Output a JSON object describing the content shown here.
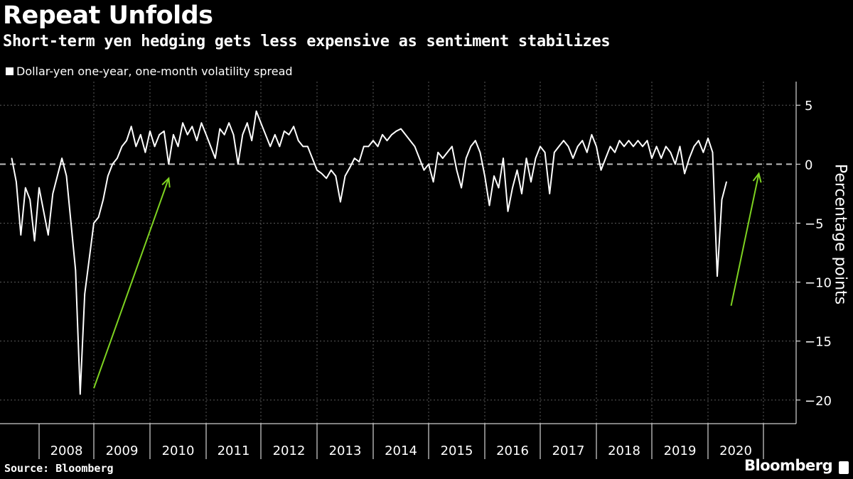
{
  "title": "Repeat Unfolds",
  "subtitle": "Short-term yen hedging gets less expensive as sentiment stabilizes",
  "legend_label": "Dollar-yen one-year, one-month volatility spread",
  "source": "Source: Bloomberg",
  "brand": "Bloomberg",
  "colors": {
    "background": "#000000",
    "series": "#ffffff",
    "arrow": "#7ed321",
    "grid": "#5a5a5a",
    "zero_line": "#bdbdbd"
  },
  "chart_data": {
    "type": "line",
    "title": "Repeat Unfolds",
    "ylabel": "Percentage points",
    "ylim": [
      -22,
      7
    ],
    "y_ticks": [
      5,
      0,
      -5,
      -10,
      -15,
      -20
    ],
    "x_ticks": [
      "2008",
      "2009",
      "2010",
      "2011",
      "2012",
      "2013",
      "2014",
      "2015",
      "2016",
      "2017",
      "2018",
      "2019",
      "2020"
    ],
    "grid": true,
    "legend_placement": "top-left",
    "reference_line": {
      "y": 0,
      "style": "dashed"
    },
    "series": [
      {
        "name": "Dollar-yen one-year, one-month volatility spread",
        "points": [
          [
            "2007-07",
            0.5
          ],
          [
            "2007-08",
            -1.5
          ],
          [
            "2007-09",
            -6.0
          ],
          [
            "2007-10",
            -2.0
          ],
          [
            "2007-11",
            -3.0
          ],
          [
            "2007-12",
            -6.5
          ],
          [
            "2008-01",
            -2.0
          ],
          [
            "2008-02",
            -4.0
          ],
          [
            "2008-03",
            -6.0
          ],
          [
            "2008-04",
            -2.5
          ],
          [
            "2008-05",
            -1.0
          ],
          [
            "2008-06",
            0.5
          ],
          [
            "2008-07",
            -1.0
          ],
          [
            "2008-08",
            -5.0
          ],
          [
            "2008-09",
            -9.0
          ],
          [
            "2008-10",
            -19.5
          ],
          [
            "2008-11",
            -11.0
          ],
          [
            "2008-12",
            -8.0
          ],
          [
            "2009-01",
            -5.0
          ],
          [
            "2009-02",
            -4.5
          ],
          [
            "2009-03",
            -3.0
          ],
          [
            "2009-04",
            -1.0
          ],
          [
            "2009-05",
            0.0
          ],
          [
            "2009-06",
            0.5
          ],
          [
            "2009-07",
            1.5
          ],
          [
            "2009-08",
            2.0
          ],
          [
            "2009-09",
            3.2
          ],
          [
            "2009-10",
            1.5
          ],
          [
            "2009-11",
            2.5
          ],
          [
            "2009-12",
            1.0
          ],
          [
            "2010-01",
            2.8
          ],
          [
            "2010-02",
            1.5
          ],
          [
            "2010-03",
            2.5
          ],
          [
            "2010-04",
            2.8
          ],
          [
            "2010-05",
            0.0
          ],
          [
            "2010-06",
            2.5
          ],
          [
            "2010-07",
            1.5
          ],
          [
            "2010-08",
            3.5
          ],
          [
            "2010-09",
            2.5
          ],
          [
            "2010-10",
            3.2
          ],
          [
            "2010-11",
            2.0
          ],
          [
            "2010-12",
            3.5
          ],
          [
            "2011-01",
            2.5
          ],
          [
            "2011-03",
            0.5
          ],
          [
            "2011-04",
            3.0
          ],
          [
            "2011-05",
            2.5
          ],
          [
            "2011-06",
            3.5
          ],
          [
            "2011-07",
            2.5
          ],
          [
            "2011-08",
            0.0
          ],
          [
            "2011-09",
            2.5
          ],
          [
            "2011-10",
            3.5
          ],
          [
            "2011-11",
            2.0
          ],
          [
            "2011-12",
            4.5
          ],
          [
            "2012-01",
            3.5
          ],
          [
            "2012-02",
            2.5
          ],
          [
            "2012-03",
            1.5
          ],
          [
            "2012-04",
            2.5
          ],
          [
            "2012-05",
            1.5
          ],
          [
            "2012-06",
            2.8
          ],
          [
            "2012-07",
            2.5
          ],
          [
            "2012-08",
            3.2
          ],
          [
            "2012-09",
            2.0
          ],
          [
            "2012-10",
            1.5
          ],
          [
            "2012-11",
            1.5
          ],
          [
            "2012-12",
            0.5
          ],
          [
            "2013-01",
            -0.5
          ],
          [
            "2013-02",
            -0.8
          ],
          [
            "2013-03",
            -1.2
          ],
          [
            "2013-04",
            -0.5
          ],
          [
            "2013-05",
            -1.0
          ],
          [
            "2013-06",
            -3.2
          ],
          [
            "2013-07",
            -1.0
          ],
          [
            "2013-08",
            -0.3
          ],
          [
            "2013-09",
            0.5
          ],
          [
            "2013-10",
            0.2
          ],
          [
            "2013-11",
            1.5
          ],
          [
            "2013-12",
            1.5
          ],
          [
            "2014-01",
            2.0
          ],
          [
            "2014-02",
            1.5
          ],
          [
            "2014-03",
            2.5
          ],
          [
            "2014-04",
            2.0
          ],
          [
            "2014-05",
            2.5
          ],
          [
            "2014-06",
            2.8
          ],
          [
            "2014-07",
            3.0
          ],
          [
            "2014-08",
            2.5
          ],
          [
            "2014-09",
            2.0
          ],
          [
            "2014-10",
            1.5
          ],
          [
            "2014-11",
            0.5
          ],
          [
            "2014-12",
            -0.5
          ],
          [
            "2015-01",
            0.0
          ],
          [
            "2015-02",
            -1.5
          ],
          [
            "2015-03",
            1.0
          ],
          [
            "2015-04",
            0.5
          ],
          [
            "2015-05",
            1.0
          ],
          [
            "2015-06",
            1.5
          ],
          [
            "2015-07",
            -0.5
          ],
          [
            "2015-08",
            -2.0
          ],
          [
            "2015-09",
            0.5
          ],
          [
            "2015-10",
            1.5
          ],
          [
            "2015-11",
            2.0
          ],
          [
            "2015-12",
            1.0
          ],
          [
            "2016-01",
            -1.0
          ],
          [
            "2016-02",
            -3.5
          ],
          [
            "2016-03",
            -1.0
          ],
          [
            "2016-04",
            -2.0
          ],
          [
            "2016-05",
            0.5
          ],
          [
            "2016-06",
            -4.0
          ],
          [
            "2016-07",
            -2.0
          ],
          [
            "2016-08",
            -0.5
          ],
          [
            "2016-09",
            -2.5
          ],
          [
            "2016-10",
            0.5
          ],
          [
            "2016-11",
            -1.5
          ],
          [
            "2016-12",
            0.5
          ],
          [
            "2017-01",
            1.5
          ],
          [
            "2017-02",
            1.0
          ],
          [
            "2017-03",
            -2.5
          ],
          [
            "2017-04",
            1.0
          ],
          [
            "2017-05",
            1.5
          ],
          [
            "2017-06",
            2.0
          ],
          [
            "2017-07",
            1.5
          ],
          [
            "2017-08",
            0.5
          ],
          [
            "2017-09",
            1.5
          ],
          [
            "2017-10",
            2.0
          ],
          [
            "2017-11",
            1.0
          ],
          [
            "2017-12",
            2.5
          ],
          [
            "2018-01",
            1.5
          ],
          [
            "2018-02",
            -0.5
          ],
          [
            "2018-03",
            0.5
          ],
          [
            "2018-04",
            1.5
          ],
          [
            "2018-05",
            1.0
          ],
          [
            "2018-06",
            2.0
          ],
          [
            "2018-07",
            1.5
          ],
          [
            "2018-08",
            2.0
          ],
          [
            "2018-09",
            1.5
          ],
          [
            "2018-10",
            2.0
          ],
          [
            "2018-11",
            1.5
          ],
          [
            "2018-12",
            2.0
          ],
          [
            "2019-01",
            0.5
          ],
          [
            "2019-02",
            1.5
          ],
          [
            "2019-03",
            0.5
          ],
          [
            "2019-04",
            1.5
          ],
          [
            "2019-05",
            1.0
          ],
          [
            "2019-06",
            0.0
          ],
          [
            "2019-07",
            1.5
          ],
          [
            "2019-08",
            -0.8
          ],
          [
            "2019-09",
            0.5
          ],
          [
            "2019-10",
            1.5
          ],
          [
            "2019-11",
            2.0
          ],
          [
            "2019-12",
            1.0
          ],
          [
            "2020-01",
            2.2
          ],
          [
            "2020-02",
            1.0
          ],
          [
            "2020-03",
            -9.5
          ],
          [
            "2020-04",
            -3.0
          ],
          [
            "2020-05",
            -1.5
          ]
        ]
      }
    ],
    "annotations": [
      {
        "type": "arrow",
        "from": [
          "2009-01",
          -19.0
        ],
        "to": [
          "2010-05",
          -1.2
        ]
      },
      {
        "type": "arrow",
        "from": [
          "2020-06",
          -12.0
        ],
        "to": [
          "2020-12",
          -0.8
        ]
      }
    ]
  }
}
